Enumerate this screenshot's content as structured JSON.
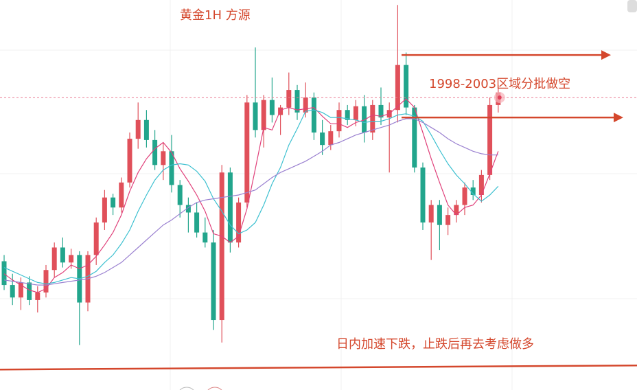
{
  "chart_data": {
    "type": "candlestick",
    "title": "黄金1H  方源",
    "annotations": [
      "1998-2003区域分批做空",
      "日内加速下跌，止跌后再去考虑做多"
    ],
    "ylim": [
      1976.2,
      2007.4
    ],
    "up_color": "#e0505a",
    "down_color": "#22a58c",
    "zone": [
      2003,
      1998
    ],
    "zone_color": "#d4472c",
    "price_line": 1999.6,
    "support": 1978,
    "candles": [
      [
        1986.5,
        1987.0,
        1984.2,
        1984.6
      ],
      [
        1984.6,
        1985.5,
        1983.0,
        1983.6
      ],
      [
        1983.6,
        1985.2,
        1982.6,
        1984.8
      ],
      [
        1984.8,
        1985.3,
        1983.0,
        1983.4
      ],
      [
        1983.4,
        1984.5,
        1982.4,
        1984.0
      ],
      [
        1984.0,
        1986.2,
        1983.6,
        1985.8
      ],
      [
        1985.8,
        1988.0,
        1985.2,
        1987.6
      ],
      [
        1987.6,
        1988.4,
        1986.0,
        1986.4
      ],
      [
        1986.4,
        1987.5,
        1985.9,
        1987.0
      ],
      [
        1987.0,
        1987.3,
        1979.8,
        1983.2
      ],
      [
        1983.2,
        1987.3,
        1982.5,
        1987.0
      ],
      [
        1987.0,
        1990.0,
        1986.2,
        1989.6
      ],
      [
        1989.6,
        1992.2,
        1989.0,
        1991.6
      ],
      [
        1991.6,
        1991.9,
        1990.2,
        1990.8
      ],
      [
        1990.8,
        1993.2,
        1990.4,
        1992.8
      ],
      [
        1992.8,
        1996.8,
        1992.4,
        1996.3
      ],
      [
        1996.3,
        1999.2,
        1995.5,
        1997.8
      ],
      [
        1997.8,
        1998.6,
        1995.6,
        1996.2
      ],
      [
        1996.2,
        1997.0,
        1993.8,
        1994.2
      ],
      [
        1994.2,
        1996.0,
        1993.0,
        1995.3
      ],
      [
        1995.3,
        1996.6,
        1992.0,
        1992.6
      ],
      [
        1992.6,
        1993.0,
        1990.0,
        1991.0
      ],
      [
        1991.0,
        1991.6,
        1988.8,
        1990.4
      ],
      [
        1990.4,
        1991.2,
        1988.4,
        1988.8
      ],
      [
        1988.8,
        1990.0,
        1987.6,
        1988.0
      ],
      [
        1988.0,
        1989.0,
        1981.0,
        1981.8
      ],
      [
        1981.8,
        1994.2,
        1980.0,
        1993.6
      ],
      [
        1993.6,
        1994.0,
        1987.2,
        1988.0
      ],
      [
        1988.0,
        1991.6,
        1987.6,
        1991.2
      ],
      [
        1991.2,
        1999.8,
        1990.8,
        1999.2
      ],
      [
        1999.2,
        2003.6,
        1996.4,
        1997.0
      ],
      [
        1997.0,
        1999.8,
        1995.6,
        1999.4
      ],
      [
        1999.4,
        2001.2,
        1997.6,
        1998.2
      ],
      [
        1998.2,
        1999.0,
        1996.6,
        1998.8
      ],
      [
        1998.8,
        2001.6,
        1998.2,
        2000.2
      ],
      [
        2000.2,
        2000.6,
        1997.8,
        1998.4
      ],
      [
        1998.4,
        2000.8,
        1998.0,
        1999.6
      ],
      [
        1999.6,
        2000.0,
        1996.2,
        1996.8
      ],
      [
        1996.8,
        1997.8,
        1995.0,
        1995.8
      ],
      [
        1995.8,
        1997.4,
        1995.4,
        1996.9
      ],
      [
        1996.9,
        1999.2,
        1996.4,
        1998.6
      ],
      [
        1998.6,
        1999.0,
        1997.4,
        1997.8
      ],
      [
        1997.8,
        1999.4,
        1997.3,
        1998.9
      ],
      [
        1998.9,
        1999.8,
        1996.0,
        1996.8
      ],
      [
        1996.8,
        1999.4,
        1996.2,
        1999.0
      ],
      [
        1999.0,
        2000.4,
        1997.4,
        1998.0
      ],
      [
        1998.0,
        1999.2,
        1993.6,
        1998.6
      ],
      [
        1998.6,
        2007.0,
        1997.6,
        2002.2
      ],
      [
        2002.2,
        2003.2,
        1998.2,
        1998.8
      ],
      [
        1998.8,
        1999.0,
        1993.6,
        1994.0
      ],
      [
        1994.0,
        1994.4,
        1989.0,
        1989.6
      ],
      [
        1989.6,
        1991.4,
        1986.6,
        1991.0
      ],
      [
        1991.0,
        1991.4,
        1987.4,
        1989.4
      ],
      [
        1989.4,
        1990.8,
        1988.6,
        1990.2
      ],
      [
        1990.2,
        1991.4,
        1989.6,
        1991.0
      ],
      [
        1991.0,
        1992.8,
        1990.2,
        1992.4
      ],
      [
        1992.4,
        1993.0,
        1991.4,
        1991.8
      ],
      [
        1991.8,
        1993.8,
        1991.2,
        1993.4
      ],
      [
        1993.4,
        1999.6,
        1993.0,
        1999.0
      ],
      [
        1999.0,
        2000.6,
        1998.4,
        2000.0
      ]
    ],
    "series": [
      {
        "color": "#e0407a",
        "values": [
          1985.5,
          1985.0,
          1984.6,
          1984.2,
          1984.0,
          1984.3,
          1985.2,
          1985.6,
          1986.2,
          1985.9,
          1986.2,
          1986.9,
          1987.8,
          1988.8,
          1990.2,
          1992.1,
          1993.6,
          1994.7,
          1995.5,
          1996.0,
          1995.2,
          1993.9,
          1992.9,
          1991.8,
          1990.5,
          1988.7,
          1988.5,
          1988.0,
          1988.5,
          1990.7,
          1993.9,
          1997.2,
          1997.0,
          1998.6,
          1998.8,
          1998.6,
          1998.7,
          1998.8,
          1998.1,
          1997.5,
          1997.5,
          1997.2,
          1997.6,
          1997.8,
          1998.2,
          1998.1,
          1998.3,
          1998.9,
          1999.5,
          1998.8,
          1996.8,
          1994.7,
          1992.8,
          1991.0,
          1990.2,
          1990.8,
          1991.0,
          1991.8,
          1993.5,
          1995.3
        ]
      },
      {
        "color": "#3cc0d0",
        "values": [
          1986.0,
          1985.7,
          1985.4,
          1985.1,
          1984.8,
          1984.7,
          1984.8,
          1985.0,
          1985.2,
          1985.1,
          1985.3,
          1985.7,
          1986.4,
          1987.0,
          1987.9,
          1989.0,
          1990.5,
          1991.8,
          1993.0,
          1993.8,
          1994.2,
          1994.3,
          1994.2,
          1993.7,
          1992.9,
          1991.5,
          1990.5,
          1989.4,
          1988.7,
          1989.0,
          1989.6,
          1991.0,
          1992.7,
          1994.0,
          1995.8,
          1997.1,
          1998.5,
          1998.6,
          1998.4,
          1998.0,
          1998.0,
          1997.9,
          1997.8,
          1997.6,
          1997.7,
          1997.7,
          1997.9,
          1998.2,
          1998.3,
          1998.1,
          1997.7,
          1996.6,
          1995.4,
          1994.3,
          1993.4,
          1992.7,
          1991.9,
          1991.3,
          1991.8,
          1992.5
        ]
      },
      {
        "color": "#9a80d0",
        "values": [
          1985.0,
          1984.9,
          1984.8,
          1984.7,
          1984.6,
          1984.6,
          1984.7,
          1984.8,
          1984.9,
          1985.0,
          1985.1,
          1985.3,
          1985.6,
          1986.0,
          1986.4,
          1987.0,
          1987.6,
          1988.2,
          1988.8,
          1989.4,
          1989.8,
          1990.3,
          1990.8,
          1991.2,
          1991.4,
          1991.5,
          1991.6,
          1991.7,
          1991.8,
          1992.0,
          1992.2,
          1992.7,
          1993.2,
          1993.6,
          1993.9,
          1994.2,
          1994.5,
          1994.9,
          1995.3,
          1995.8,
          1996.0,
          1996.3,
          1996.6,
          1996.8,
          1997.0,
          1997.2,
          1997.4,
          1997.7,
          1997.9,
          1997.9,
          1997.6,
          1997.2,
          1996.8,
          1996.3,
          1995.9,
          1995.6,
          1995.3,
          1995.1,
          1995.0,
          1995.0
        ]
      }
    ]
  }
}
